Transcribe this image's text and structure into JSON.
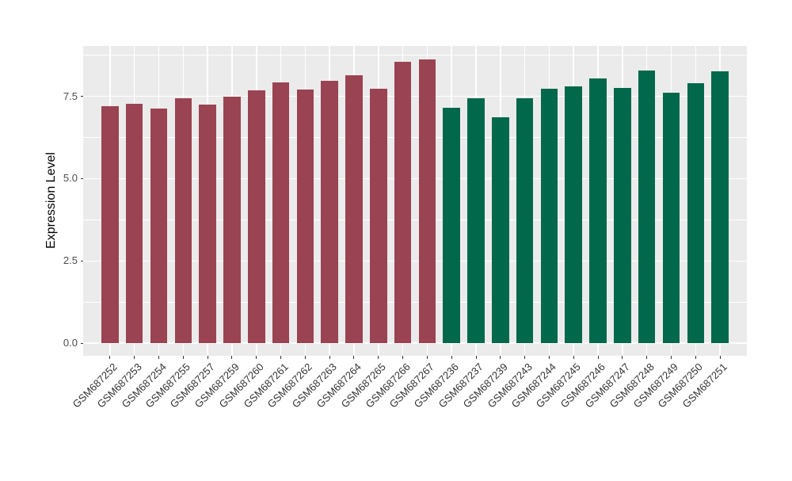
{
  "chart_data": {
    "type": "bar",
    "title": "",
    "xlabel": "",
    "ylabel": "Expression Level",
    "ylim": [
      -0.38,
      9.03
    ],
    "yticks": [
      0.0,
      2.5,
      5.0,
      7.5
    ],
    "ytick_labels": [
      "0.0",
      "2.5",
      "5.0",
      "7.5"
    ],
    "yticks_minor": [
      1.25,
      3.75,
      6.25,
      8.75
    ],
    "grid": "on",
    "legend_position": "none",
    "categories": [
      "GSM687252",
      "GSM687253",
      "GSM687254",
      "GSM687255",
      "GSM687257",
      "GSM687259",
      "GSM687260",
      "GSM687261",
      "GSM687262",
      "GSM687263",
      "GSM687264",
      "GSM687265",
      "GSM687266",
      "GSM687267",
      "GSM687236",
      "GSM687237",
      "GSM687239",
      "GSM687243",
      "GSM687244",
      "GSM687245",
      "GSM687246",
      "GSM687247",
      "GSM687248",
      "GSM687249",
      "GSM687250",
      "GSM687251"
    ],
    "values": [
      7.2,
      7.28,
      7.13,
      7.45,
      7.24,
      7.5,
      7.68,
      7.93,
      7.71,
      7.98,
      8.14,
      7.74,
      8.55,
      8.63,
      7.16,
      7.44,
      6.87,
      7.43,
      7.74,
      7.81,
      8.04,
      7.75,
      8.29,
      7.6,
      7.89,
      8.25
    ],
    "bar_groups": [
      "g1",
      "g1",
      "g1",
      "g1",
      "g1",
      "g1",
      "g1",
      "g1",
      "g1",
      "g1",
      "g1",
      "g1",
      "g1",
      "g1",
      "g2",
      "g2",
      "g2",
      "g2",
      "g2",
      "g2",
      "g2",
      "g2",
      "g2",
      "g2",
      "g2",
      "g2"
    ],
    "group_colors": {
      "g1": "#9A4352",
      "g2": "#01684B"
    },
    "panel_background": "#EBEBEB",
    "grid_color": "#FFFFFF",
    "axis_text_color": "#4D4D4D",
    "tick_color": "#333333"
  }
}
